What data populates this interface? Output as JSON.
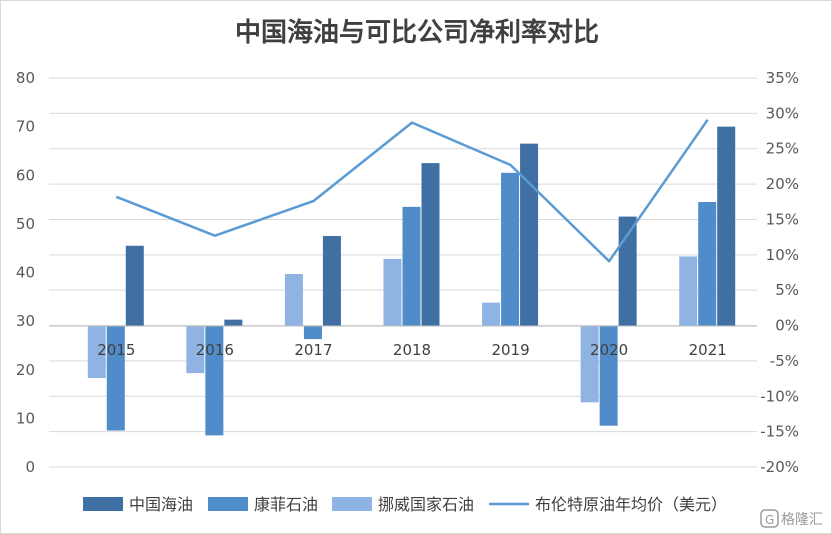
{
  "chart_data": {
    "type": "bar",
    "title": "中国海油与可比公司净利率对比",
    "categories": [
      "2015",
      "2016",
      "2017",
      "2018",
      "2019",
      "2020",
      "2021"
    ],
    "series": [
      {
        "name": "中国海油",
        "axis": "left",
        "color": "#3f6fa3",
        "values": [
          45.5,
          30.3,
          47.5,
          62.5,
          66.5,
          51.5,
          70.0
        ]
      },
      {
        "name": "康菲石油",
        "axis": "left",
        "color": "#4f8cc9",
        "values": [
          7.5,
          6.5,
          26.3,
          53.5,
          60.5,
          8.5,
          54.5
        ]
      },
      {
        "name": "挪威国家石油",
        "axis": "left",
        "color": "#8fb4e3",
        "values": [
          18.3,
          19.3,
          39.7,
          42.8,
          33.8,
          13.3,
          43.3
        ]
      }
    ],
    "line": {
      "name": "布伦特原油年均价（美元）",
      "axis": "right",
      "color": "#5b9bd5",
      "values": [
        0.182,
        0.127,
        0.176,
        0.287,
        0.227,
        0.091,
        0.291
      ]
    },
    "ylim": [
      0,
      80
    ],
    "y_ticks": [
      0,
      10,
      20,
      30,
      40,
      50,
      60,
      70,
      80
    ],
    "y2lim": [
      -0.2,
      0.35
    ],
    "y2_ticks": [
      "35%",
      "30%",
      "25%",
      "20%",
      "15%",
      "10%",
      "5%",
      "0%",
      "-5%",
      "-10%",
      "-15%",
      "-20%"
    ],
    "grid": true,
    "legend_position": "bottom"
  },
  "watermark": "格隆汇"
}
